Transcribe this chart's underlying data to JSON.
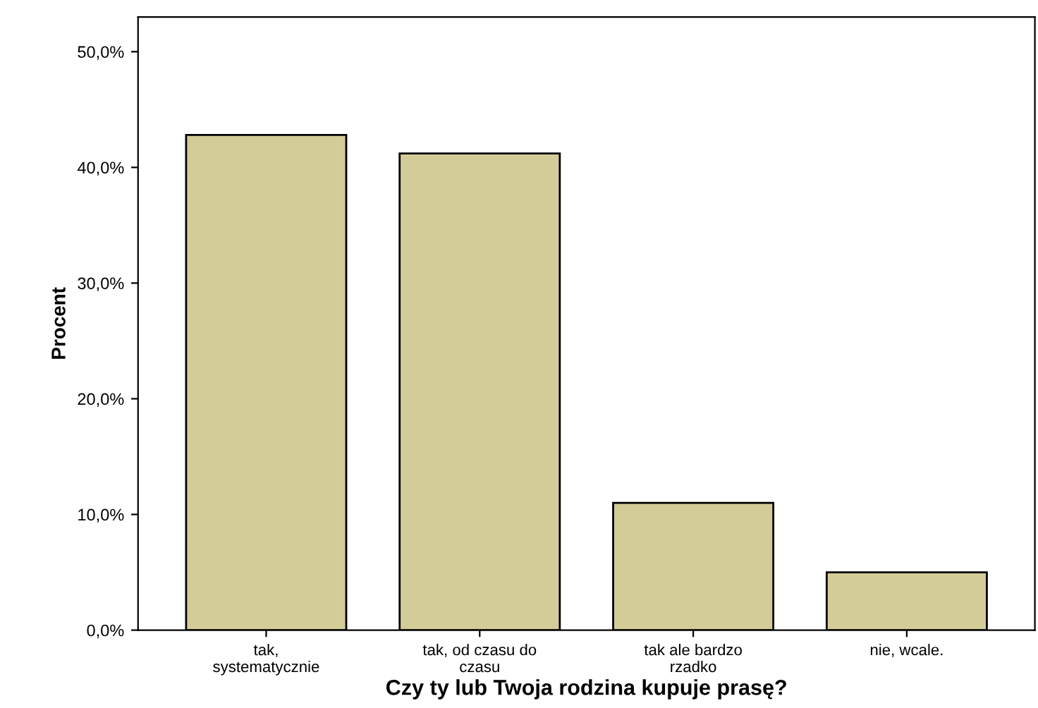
{
  "chart_data": {
    "type": "bar",
    "xlabel": "Czy ty lub Twoja rodzina kupuje prasę?",
    "ylabel": "Procent",
    "categories": [
      "tak,\nsystematycznie",
      "tak, od czasu do\nczasu",
      "tak ale bardzo\nrzadko",
      "nie, wcale."
    ],
    "values": [
      42.8,
      41.2,
      11.0,
      5.0
    ],
    "color": "#d4cc98",
    "ylim": [
      0,
      53
    ],
    "yticks": [
      {
        "value": 0,
        "label": "0,0%"
      },
      {
        "value": 10,
        "label": "10,0%"
      },
      {
        "value": 20,
        "label": "20,0%"
      },
      {
        "value": 30,
        "label": "30,0%"
      },
      {
        "value": 40,
        "label": "40,0%"
      },
      {
        "value": 50,
        "label": "50,0%"
      }
    ],
    "grid": false,
    "legend": false
  }
}
